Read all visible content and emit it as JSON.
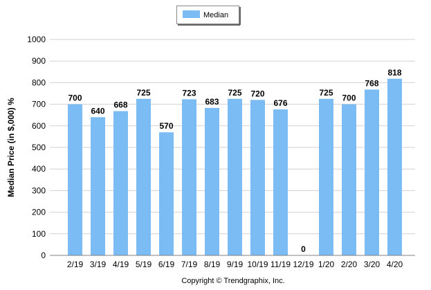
{
  "chart_data": {
    "type": "bar",
    "categories": [
      "2/19",
      "3/19",
      "4/19",
      "5/19",
      "6/19",
      "7/19",
      "8/19",
      "9/19",
      "10/19",
      "11/19",
      "12/19",
      "1/20",
      "2/20",
      "3/20",
      "4/20"
    ],
    "series": [
      {
        "name": "Median",
        "values": [
          700,
          640,
          668,
          725,
          570,
          723,
          683,
          725,
          720,
          676,
          0,
          725,
          700,
          768,
          818
        ],
        "color": "#7ABCF3"
      }
    ],
    "data_labels": [
      "700",
      "640",
      "668",
      "725",
      "570",
      "723",
      "683",
      "725",
      "720",
      "676",
      "0",
      "725",
      "700",
      "768",
      "818"
    ],
    "ylabel": "Median Price (in $,000) %",
    "xlabel": "",
    "ylim": [
      0,
      1000
    ],
    "yticks": [
      0,
      100,
      200,
      300,
      400,
      500,
      600,
      700,
      800,
      900,
      1000
    ],
    "grid": true,
    "legend_position": "top-center"
  },
  "footer": {
    "copyright": "Copyright © Trendgraphix, Inc."
  },
  "colors": {
    "bar": "#7ABCF3",
    "grid": "#D0D0D0",
    "axis": "#808080"
  }
}
